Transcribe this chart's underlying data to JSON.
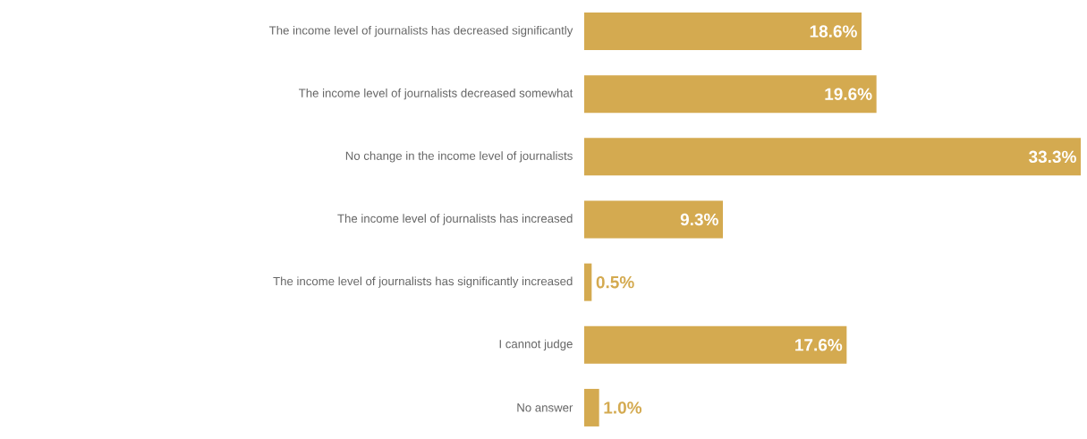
{
  "chart_data": {
    "type": "bar",
    "orientation": "horizontal",
    "color": "#d4aa50",
    "categories": [
      "The income level of journalists has decreased significantly",
      "The income level of journalists decreased somewhat",
      "No change in the income level of journalists",
      "The income level of journalists has increased",
      "The income level of journalists has significantly increased",
      "I cannot judge",
      "No answer"
    ],
    "values": [
      18.6,
      19.6,
      33.3,
      9.3,
      0.5,
      17.6,
      1.0
    ],
    "value_labels": [
      "18.6%",
      "19.6%",
      "33.3%",
      "9.3%",
      "0.5%",
      "17.6%",
      "1.0%"
    ]
  }
}
